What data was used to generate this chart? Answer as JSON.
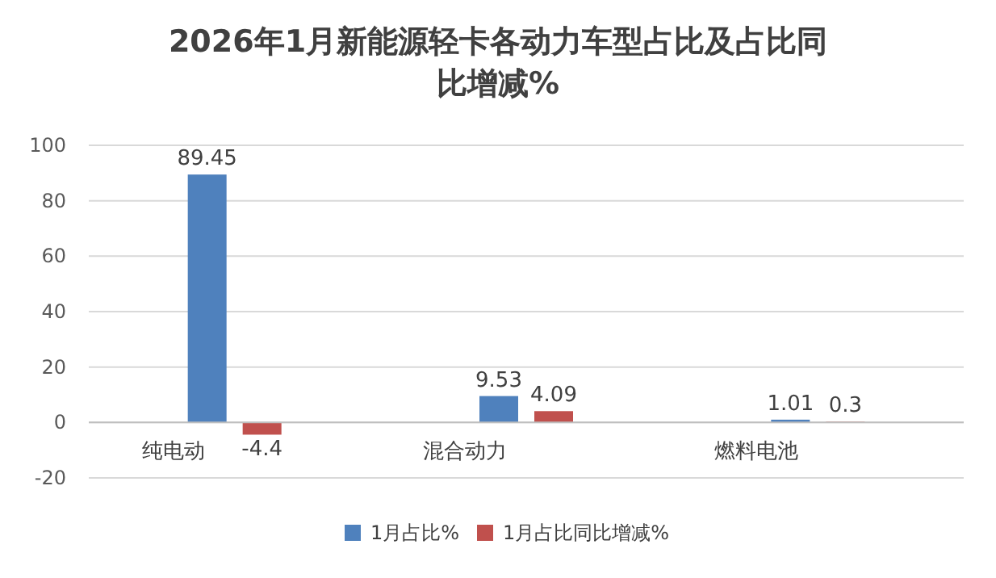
{
  "chart_data": {
    "type": "bar",
    "title": "2026年1月新能源轻卡各动力车型占比及占比同比增减%",
    "categories": [
      "纯电动",
      "混合动力",
      "燃料电池"
    ],
    "series": [
      {
        "name": "1月占比%",
        "color": "#4f81bd",
        "values": [
          89.45,
          9.53,
          1.01
        ]
      },
      {
        "name": "1月占比同比增减%",
        "color": "#c0504d",
        "values": [
          -4.4,
          4.09,
          0.3
        ]
      }
    ],
    "ylim": [
      -20,
      100
    ],
    "yticks": [
      -20,
      0,
      20,
      40,
      60,
      80,
      100
    ],
    "grid": "y",
    "legend": "bottom",
    "data_labels": true
  }
}
